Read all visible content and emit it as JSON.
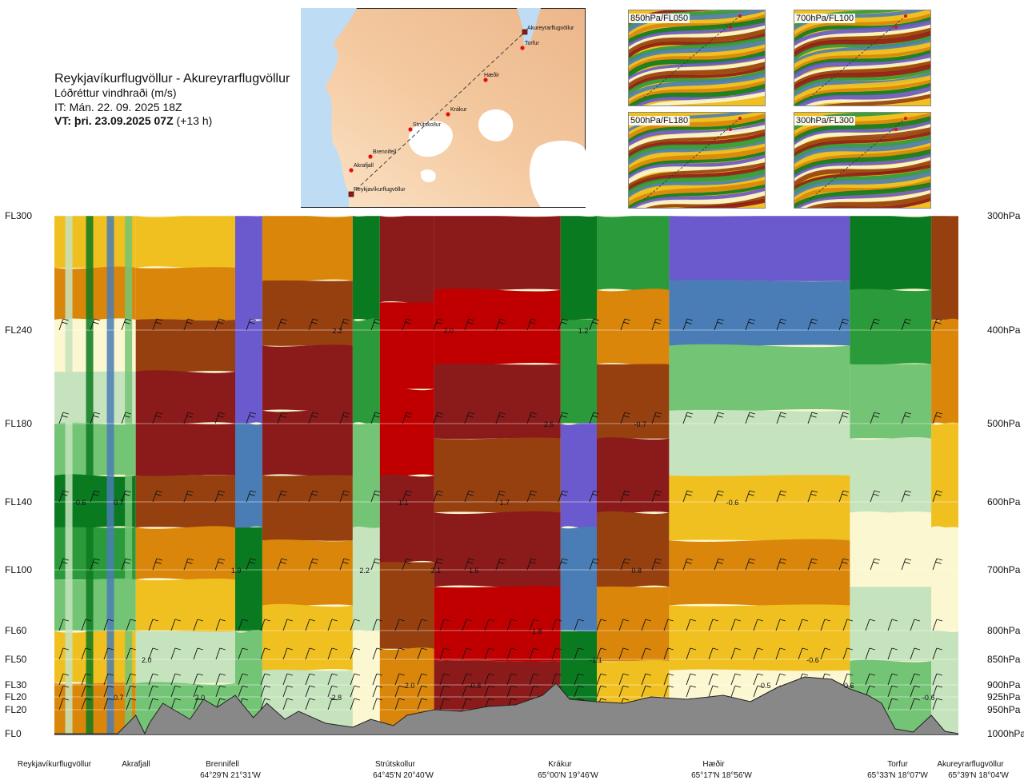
{
  "header": {
    "route_title": "Reykjavíkurflugvöllur - Akureyrarflugvöllur",
    "subtitle": "Lóðréttur vindhraði (m/s)",
    "issue_time": "IT: Mán. 22. 09. 2025 18Z",
    "valid_time_bold": "VT: þri. 23.09.2025 07Z",
    "valid_time_offset": "(+13 h)"
  },
  "route_map": {
    "places": [
      {
        "name": "Akureyrarflugvöllur",
        "kind": "airport"
      },
      {
        "name": "Torfur",
        "kind": "point"
      },
      {
        "name": "Hæðir",
        "kind": "point"
      },
      {
        "name": "Krákur",
        "kind": "point"
      },
      {
        "name": "Strútskollur",
        "kind": "point"
      },
      {
        "name": "Brennifell",
        "kind": "point"
      },
      {
        "name": "Akrafjall",
        "kind": "point"
      },
      {
        "name": "Reykjavíkurflugvöllur",
        "kind": "airport"
      }
    ]
  },
  "level_maps": [
    {
      "label": "850hPa/FL050"
    },
    {
      "label": "700hPa/FL100"
    },
    {
      "label": "500hPa/FL180"
    },
    {
      "label": "300hPa/FL300"
    }
  ],
  "chart_data": {
    "type": "heatmap",
    "title": "Lóðréttur vindhraði (m/s)",
    "y_left_ticks": [
      "FL300",
      "FL240",
      "FL180",
      "FL140",
      "FL100",
      "FL60",
      "FL50",
      "FL30",
      "FL20",
      "FL20",
      "FL0"
    ],
    "y_right_ticks": [
      "300hPa",
      "400hPa",
      "500hPa",
      "600hPa",
      "700hPa",
      "800hPa",
      "850hPa",
      "900hPa",
      "925hPa",
      "950hPa",
      "1000hPa"
    ],
    "pressure_levels_hpa": [
      300,
      400,
      500,
      600,
      700,
      800,
      850,
      900,
      925,
      950,
      1000
    ],
    "colors": {
      "strong_up": "#c00000",
      "up": "#8b1a1a",
      "mod_up": "#964010",
      "weak_up": "#d9860a",
      "slight_up": "#f0c020",
      "neutral": "#fbf7d0",
      "slight_down": "#c5e3bd",
      "weak_down": "#74c476",
      "mod_down": "#2a9a3a",
      "down": "#0a7a20",
      "strong_down": "#4a7db5",
      "very_strong_down": "#6a5acd",
      "terrain": "#888888"
    },
    "value_labels": [
      {
        "text": "2.2",
        "dist": 0.313,
        "p": 400
      },
      {
        "text": "2.0",
        "dist": 0.436,
        "p": 400
      },
      {
        "text": "1.2",
        "dist": 0.585,
        "p": 400
      },
      {
        "text": "2.5",
        "dist": 0.547,
        "p": 500
      },
      {
        "text": "-0.7",
        "dist": 0.648,
        "p": 500
      },
      {
        "text": "-0.6",
        "dist": 0.028,
        "p": 600
      },
      {
        "text": "0.7",
        "dist": 0.071,
        "p": 600
      },
      {
        "text": "1.1",
        "dist": 0.386,
        "p": 600
      },
      {
        "text": "1.7",
        "dist": 0.498,
        "p": 600
      },
      {
        "text": "-0.6",
        "dist": 0.75,
        "p": 600
      },
      {
        "text": "1.9",
        "dist": 0.201,
        "p": 700
      },
      {
        "text": "2.2",
        "dist": 0.343,
        "p": 700
      },
      {
        "text": "2.1",
        "dist": 0.422,
        "p": 700
      },
      {
        "text": "1.5",
        "dist": 0.464,
        "p": 700
      },
      {
        "text": "0.8",
        "dist": 0.644,
        "p": 700
      },
      {
        "text": "1.8",
        "dist": 0.534,
        "p": 800
      },
      {
        "text": "2.0",
        "dist": 0.102,
        "p": 850
      },
      {
        "text": "-1.1",
        "dist": 0.599,
        "p": 850
      },
      {
        "text": "-0.6",
        "dist": 0.839,
        "p": 850
      },
      {
        "text": "2.0",
        "dist": 0.393,
        "p": 900
      },
      {
        "text": "-0.8",
        "dist": 0.465,
        "p": 900
      },
      {
        "text": "0.5",
        "dist": 0.787,
        "p": 900
      },
      {
        "text": "0.6",
        "dist": 0.879,
        "p": 900
      },
      {
        "text": "0.7",
        "dist": 0.071,
        "p": 925
      },
      {
        "text": "2.0",
        "dist": 0.161,
        "p": 925
      },
      {
        "text": "-2.8",
        "dist": 0.311,
        "p": 925
      },
      {
        "text": "-0.6",
        "dist": 0.967,
        "p": 925
      }
    ],
    "waypoints": [
      {
        "name": "Reykjavíkurflugvöllur",
        "coord": "",
        "dist": 0.0
      },
      {
        "name": "Akrafjall",
        "coord": "",
        "dist": 0.09
      },
      {
        "name": "Brennifell",
        "coord": "64°29'N 21°31'W",
        "dist": 0.195
      },
      {
        "name": "Strútskollur",
        "coord": "64°45'N 20°40'W",
        "dist": 0.377
      },
      {
        "name": "Krákur",
        "coord": "65°00'N 19°46'W",
        "dist": 0.555
      },
      {
        "name": "Hæðir",
        "coord": "65°17'N 18°56'W",
        "dist": 0.737
      },
      {
        "name": "Torfur",
        "coord": "65°33'N 18°07'W",
        "dist": 0.923
      },
      {
        "name": "Akureyrarflugvöllur",
        "coord": "65°39'N 18°04'W",
        "dist": 0.98
      }
    ],
    "xlabel": "",
    "ylabel": "",
    "grid": true,
    "legend": "none"
  }
}
